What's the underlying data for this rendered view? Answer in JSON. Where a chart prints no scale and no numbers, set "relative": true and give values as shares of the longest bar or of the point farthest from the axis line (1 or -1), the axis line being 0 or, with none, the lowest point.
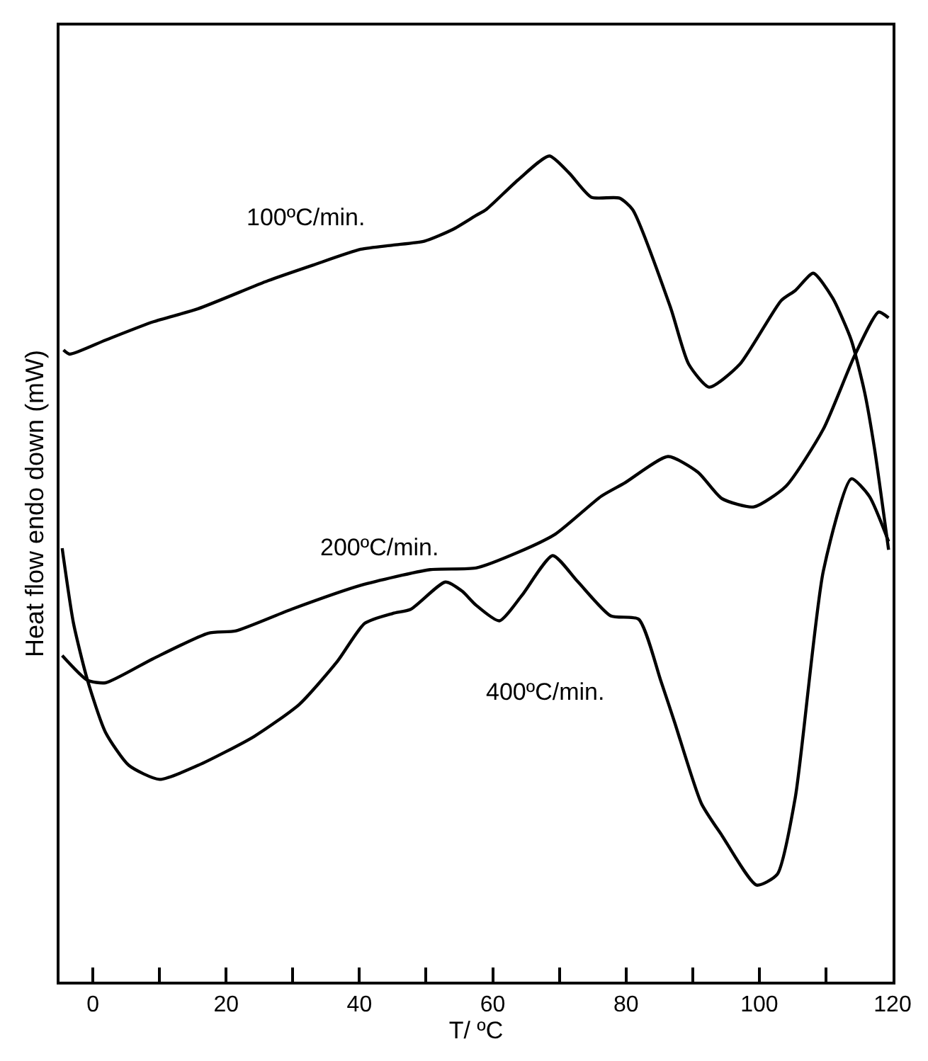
{
  "chart_data": {
    "type": "line",
    "relative": true,
    "xlabel": "T/ ºC",
    "ylabel": "Heat flow endo down (mW)",
    "xlim": [
      -5,
      120
    ],
    "xticks": [
      0,
      {
        "value": 10,
        "label": null
      },
      20,
      {
        "value": 30,
        "label": null
      },
      40,
      {
        "value": 50,
        "label": null
      },
      60,
      {
        "value": 70,
        "label": null
      },
      80,
      {
        "value": 90,
        "label": null
      },
      100,
      {
        "value": 110,
        "label": null
      },
      120
    ],
    "legend": false,
    "marker": "none",
    "line_style": "solid",
    "series": [
      {
        "name": "100ºC/min.",
        "color": "#000000",
        "x": [
          -4.4,
          -3.5,
          1.9,
          9.0,
          15.8,
          26.3,
          33.1,
          40.2,
          45.0,
          49.8,
          54.0,
          57.5,
          59.0,
          63.8,
          68.5,
          71.5,
          74.8,
          79.0,
          81.0,
          86.7,
          89.4,
          92.5,
          97.1,
          103.3,
          105.4,
          108.1,
          111.0,
          113.8,
          115.8,
          117.3,
          119.4
        ],
        "values": [
          0.765,
          0.76,
          0.777,
          0.799,
          0.815,
          0.849,
          0.868,
          0.887,
          0.892,
          0.897,
          0.911,
          0.928,
          0.935,
          0.971,
          1.0,
          0.979,
          0.95,
          0.949,
          0.935,
          0.816,
          0.748,
          0.72,
          0.748,
          0.825,
          0.837,
          0.858,
          0.828,
          0.777,
          0.714,
          0.645,
          0.523
        ]
      },
      {
        "name": "200ºC/min.",
        "color": "#000000",
        "x": [
          -4.6,
          -0.8,
          1.9,
          9.0,
          17.3,
          21.5,
          29.8,
          40.2,
          50.6,
          57.5,
          63.8,
          69.4,
          76.3,
          79.8,
          86.3,
          90.8,
          94.4,
          99.2,
          104.0,
          109.6,
          114.4,
          117.9,
          119.4
        ],
        "values": [
          0.395,
          0.365,
          0.362,
          0.391,
          0.422,
          0.425,
          0.451,
          0.48,
          0.499,
          0.501,
          0.52,
          0.542,
          0.588,
          0.604,
          0.636,
          0.617,
          0.585,
          0.575,
          0.6,
          0.669,
          0.76,
          0.811,
          0.804
        ]
      },
      {
        "name": "400ºC/min.",
        "color": "#000000",
        "x": [
          -4.6,
          -2.9,
          -0.8,
          1.9,
          5.4,
          10.0,
          15.8,
          24.2,
          31.0,
          36.7,
          40.8,
          45.0,
          47.7,
          52.9,
          55.4,
          57.5,
          61.0,
          64.4,
          69.0,
          72.7,
          77.7,
          81.9,
          85.2,
          87.3,
          91.3,
          94.4,
          99.6,
          102.7,
          105.4,
          109.6,
          113.8,
          116.5,
          119.4
        ],
        "values": [
          0.525,
          0.434,
          0.365,
          0.302,
          0.262,
          0.245,
          0.262,
          0.297,
          0.336,
          0.388,
          0.434,
          0.446,
          0.451,
          0.484,
          0.473,
          0.456,
          0.437,
          0.468,
          0.516,
          0.485,
          0.443,
          0.439,
          0.365,
          0.314,
          0.216,
          0.177,
          0.117,
          0.13,
          0.223,
          0.497,
          0.609,
          0.588,
          0.533
        ]
      }
    ]
  }
}
